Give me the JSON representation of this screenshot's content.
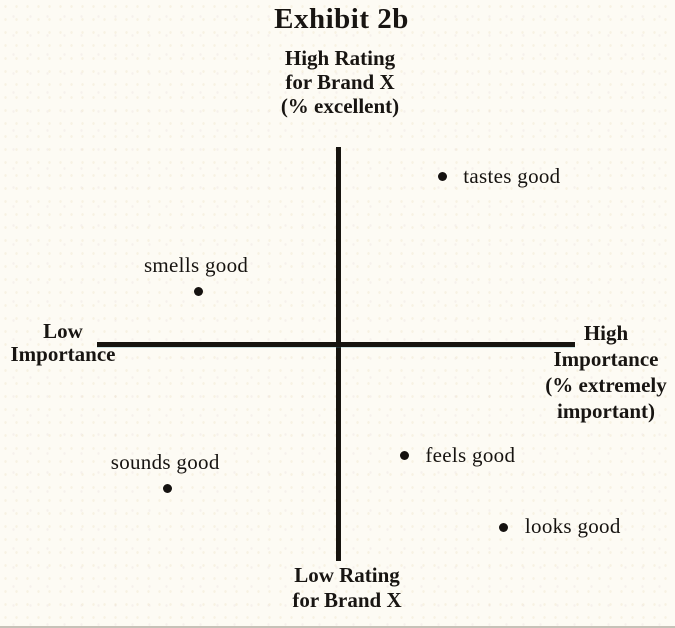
{
  "title": "Exhibit 2b",
  "colors": {
    "background": "#fdfbf4",
    "ink": "#181512",
    "axis_line": "#17140f",
    "marker": "#151210"
  },
  "chart_data": {
    "type": "scatter",
    "title": "Exhibit 2b",
    "grid": false,
    "legend": null,
    "x_axis": {
      "range": [
        -1,
        1
      ],
      "label_low": "Low Importance",
      "label_high": "High Importance (% extremely important)",
      "label_low_lines": [
        "Low",
        "Importance"
      ],
      "label_high_lines": [
        "High",
        "Importance",
        "(% extremely",
        "important)"
      ]
    },
    "y_axis": {
      "range": [
        -1,
        1
      ],
      "label_high": "High Rating for Brand X (% excellent)",
      "label_low": "Low Rating for Brand X",
      "label_high_lines": [
        "High Rating",
        "for Brand X",
        "(% excellent)"
      ],
      "label_low_lines": [
        "Low Rating",
        "for Brand X"
      ]
    },
    "points": [
      {
        "label": "tastes good",
        "x": 0.44,
        "y": 0.82,
        "label_position": "right"
      },
      {
        "label": "smells good",
        "x": -0.59,
        "y": 0.26,
        "label_position": "above"
      },
      {
        "label": "sounds good",
        "x": -0.72,
        "y": -0.7,
        "label_position": "above"
      },
      {
        "label": "feels good",
        "x": 0.28,
        "y": -0.54,
        "label_position": "right"
      },
      {
        "label": "looks good",
        "x": 0.7,
        "y": -0.89,
        "label_position": "right"
      }
    ]
  }
}
